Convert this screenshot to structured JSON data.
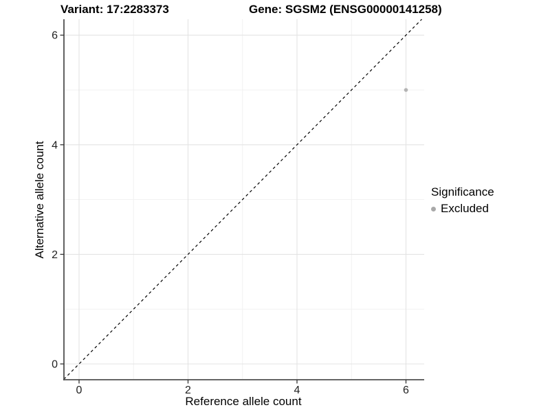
{
  "chart_data": {
    "type": "scatter",
    "title_left": "Variant: 17:2283373",
    "title_right": "Gene: SGSM2 (ENSG00000141258)",
    "xlabel": "Reference allele count",
    "ylabel": "Alternative allele count",
    "xlim": [
      -0.28,
      6.33
    ],
    "ylim": [
      -0.29,
      6.29
    ],
    "x_ticks": [
      0,
      2,
      4,
      6
    ],
    "y_ticks": [
      0,
      2,
      4,
      6
    ],
    "x_minor_ticks": [
      1,
      3,
      5
    ],
    "y_minor_ticks": [
      1,
      3,
      5
    ],
    "grid": "major+minor",
    "reference_line": {
      "type": "identity",
      "slope": 1,
      "intercept": 0,
      "style": "dashed",
      "color": "#000000"
    },
    "series": [
      {
        "name": "Excluded",
        "marker": "circle",
        "color": "#b4b4b4",
        "size": 2.8,
        "points": [
          [
            6,
            5
          ]
        ]
      }
    ],
    "legend": {
      "title": "Significance",
      "position": "right",
      "entries": [
        {
          "label": "Excluded",
          "color": "#a9a9a9"
        }
      ]
    }
  },
  "colors": {
    "background": "#ffffff",
    "axis_line": "#4f4f4f",
    "tick_mark": "#333333",
    "tick_label": "#1f1f1f",
    "grid_major": "#e3e3e3",
    "grid_minor": "#f1f1f1",
    "identity_line": "#000000"
  }
}
